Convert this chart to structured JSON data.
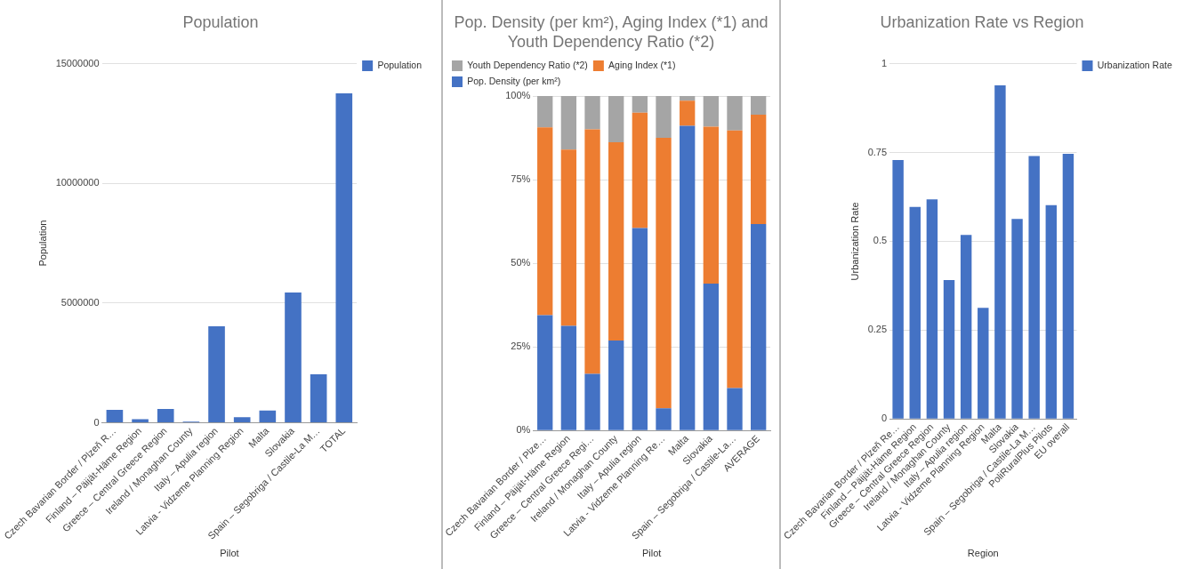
{
  "chart_data": [
    {
      "type": "bar",
      "title": "Population",
      "xlabel": "Pilot",
      "ylabel": "Population",
      "categories": [
        "Czech Bavarian Border / Plzeň R…",
        "Finland – Päijät-Häme Region",
        "Greece – Central Greece Region",
        "Ireland / Monaghan County",
        "Italy – Apulia region",
        "Latvia - Vidzeme Planning Region",
        "Malta",
        "Slovakia",
        "Spain – Segobriga / Castile-La M…",
        "TOTAL"
      ],
      "series": [
        {
          "name": "Population",
          "color": "#4472c4",
          "values": [
            540000,
            150000,
            580000,
            50000,
            4030000,
            230000,
            510000,
            5440000,
            2030000,
            13760000
          ]
        }
      ],
      "ylim": [
        0,
        15000000
      ],
      "yticks": [
        0,
        5000000,
        10000000,
        15000000
      ],
      "grid": "y",
      "legend": "right"
    },
    {
      "type": "bar",
      "title": "Pop. Density (per km²), Aging Index (*1) and Youth Dependency Ratio (*2)",
      "xlabel": "Pilot",
      "categories": [
        "Czech Bavarian Border / Plze…",
        "Finland – Päijät-Häme Region",
        "Greece – Central Greece Regi…",
        "Ireland / Monaghan County",
        "Italy – Apulia region",
        "Latvia - Vidzeme Planning Re…",
        "Malta",
        "Slovakia",
        "Spain – Segobriga / Castile-La…",
        "AVERAGE"
      ],
      "series": [
        {
          "name": "Pop. Density (per km²)",
          "color": "#4472c4",
          "values": [
            34.5,
            31.3,
            16.9,
            26.9,
            60.5,
            6.6,
            91.1,
            43.9,
            12.7,
            61.7
          ]
        },
        {
          "name": "Aging Index (*1)",
          "color": "#ed7d31",
          "values": [
            56.1,
            52.7,
            73.1,
            59.3,
            34.5,
            80.9,
            7.5,
            46.9,
            77.0,
            32.7
          ]
        },
        {
          "name": "Youth Dependency Ratio (*2)",
          "color": "#a5a5a5",
          "values": [
            9.4,
            16.0,
            10.0,
            13.8,
            5.0,
            12.5,
            1.4,
            9.2,
            10.3,
            5.6
          ]
        }
      ],
      "stacked": true,
      "ylim": [
        0,
        100
      ],
      "yticks": [
        {
          "value": 0,
          "label": "0%"
        },
        {
          "value": 25,
          "label": "25%"
        },
        {
          "value": 50,
          "label": "50%"
        },
        {
          "value": 75,
          "label": "75%"
        },
        {
          "value": 100,
          "label": "100%"
        }
      ],
      "grid": "y",
      "legend": "top"
    },
    {
      "type": "bar",
      "title": "Urbanization Rate vs Region",
      "xlabel": "Region",
      "ylabel": "Urbanization Rate",
      "categories": [
        "Czech Bavarian Border / Plzeň Re…",
        "Finland – Päijät-Häme Region",
        "Greece – Central Greece Region",
        "Ireland / Monaghan County",
        "Italy – Apulia region",
        "Latvia - Vidzeme Planning Region",
        "Malta",
        "Slovakia",
        "Spain – Segobriga / Castile-La M…",
        "PoliRuralPlus Pilots",
        "EU overall"
      ],
      "series": [
        {
          "name": "Urbanization Rate",
          "color": "#4472c4",
          "values": [
            0.729,
            0.597,
            0.618,
            0.391,
            0.518,
            0.313,
            0.939,
            0.563,
            0.74,
            0.602,
            0.746
          ]
        }
      ],
      "ylim": [
        0,
        1
      ],
      "yticks": [
        0,
        0.25,
        0.5,
        0.75,
        1
      ],
      "grid": "y",
      "legend": "right"
    }
  ]
}
